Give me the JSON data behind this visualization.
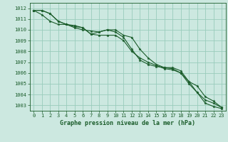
{
  "title": "Graphe pression niveau de la mer (hPa)",
  "bg_color": "#cce8e0",
  "grid_color": "#99ccbb",
  "line_color": "#1a5c2a",
  "xlim": [
    -0.5,
    23.5
  ],
  "ylim": [
    1002.5,
    1012.5
  ],
  "yticks": [
    1003,
    1004,
    1005,
    1006,
    1007,
    1008,
    1009,
    1010,
    1011,
    1012
  ],
  "xticks": [
    0,
    1,
    2,
    3,
    4,
    5,
    6,
    7,
    8,
    9,
    10,
    11,
    12,
    13,
    14,
    15,
    16,
    17,
    18,
    19,
    20,
    21,
    22,
    23
  ],
  "series": [
    [
      1011.8,
      1011.8,
      1011.5,
      1010.8,
      1010.5,
      1010.4,
      1010.2,
      1009.6,
      1009.8,
      1010.0,
      1010.0,
      1009.5,
      1009.3,
      1008.2,
      1007.4,
      1006.8,
      1006.5,
      1006.5,
      1006.2,
      1005.2,
      1004.2,
      1003.2,
      1002.9,
      1002.7
    ],
    [
      1011.8,
      1011.8,
      1011.5,
      1010.8,
      1010.5,
      1010.3,
      1010.2,
      1009.6,
      1009.5,
      1009.5,
      1009.5,
      1009.0,
      1008.0,
      1007.4,
      1007.0,
      1006.7,
      1006.4,
      1006.3,
      1006.0,
      1005.0,
      1004.2,
      1003.5,
      1003.2,
      1002.8
    ],
    [
      1011.8,
      1011.4,
      1010.8,
      1010.5,
      1010.5,
      1010.2,
      1010.0,
      1009.9,
      1009.8,
      1010.0,
      1009.8,
      1009.3,
      1008.2,
      1007.2,
      1006.8,
      1006.6,
      1006.5,
      1006.4,
      1006.0,
      1005.2,
      1004.8,
      1003.8,
      1003.4,
      1002.8
    ]
  ],
  "ylabel_fontsize": 5,
  "xlabel_fontsize": 5,
  "title_fontsize": 6,
  "marker_size": 2.5,
  "line_width": 0.8
}
